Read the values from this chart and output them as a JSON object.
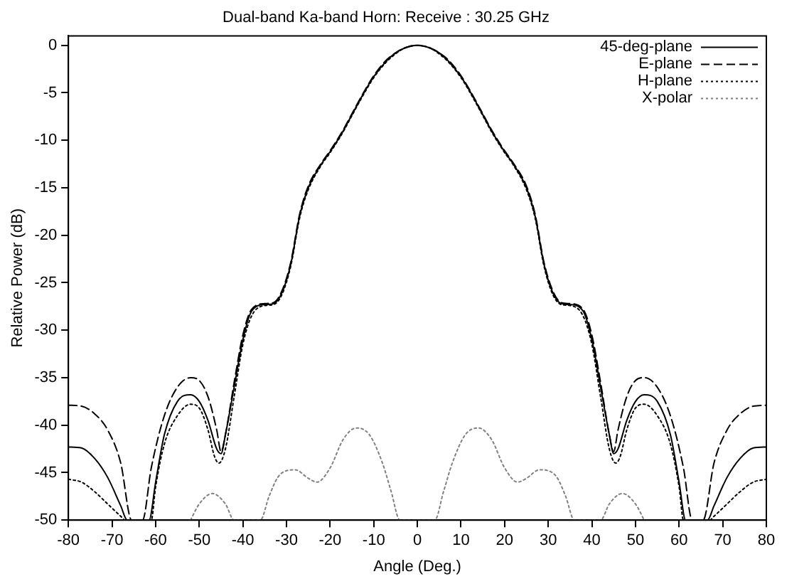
{
  "chart_data": {
    "type": "line",
    "title": "Dual-band Ka-band Horn: Receive : 30.25 GHz",
    "xlabel": "Angle (Deg.)",
    "ylabel": "Relative Power (dB)",
    "xlim": [
      -80,
      80
    ],
    "xticks": [
      -80,
      -70,
      -60,
      -50,
      -40,
      -30,
      -20,
      -10,
      0,
      10,
      20,
      30,
      40,
      50,
      60,
      70,
      80
    ],
    "ylim": [
      -50,
      1
    ],
    "yticks": [
      0,
      -5,
      -10,
      -15,
      -20,
      -25,
      -30,
      -35,
      -40,
      -45,
      -50
    ],
    "grid": false,
    "legend": "top right",
    "marker": "none",
    "series": [
      {
        "name": "45-deg-plane",
        "color": "#000000",
        "line_style": "solid",
        "x": [
          -80,
          -77,
          -74,
          -71,
          -68,
          -66.5,
          -61.5,
          -60,
          -58,
          -55,
          -52,
          -50,
          -48,
          -46,
          -45,
          -44,
          -42,
          -40,
          -38,
          -35,
          -33,
          -31,
          -29,
          -27,
          -25,
          -22,
          -20,
          -17,
          -15,
          -12,
          -10,
          -7,
          -5,
          -3,
          0,
          3,
          5,
          7,
          10,
          12,
          15,
          17,
          20,
          22,
          25,
          27,
          29,
          31,
          33,
          35,
          38,
          40,
          42,
          44,
          45,
          46,
          48,
          50,
          52,
          55,
          58,
          60,
          61.5,
          66.5,
          68,
          71,
          74,
          77,
          80
        ],
        "values": [
          -42.3,
          -42.4,
          -43.5,
          -45.5,
          -48.5,
          -50,
          -50,
          -46,
          -41,
          -37.5,
          -36.8,
          -37.5,
          -39.5,
          -42.5,
          -43,
          -41,
          -36,
          -31,
          -28,
          -27.3,
          -27.2,
          -26,
          -23,
          -18,
          -15,
          -12.5,
          -11.2,
          -9,
          -7.3,
          -4.8,
          -3.3,
          -1.6,
          -0.8,
          -0.3,
          0,
          -0.3,
          -0.8,
          -1.6,
          -3.3,
          -4.8,
          -7.3,
          -9,
          -11.2,
          -12.5,
          -15,
          -18,
          -23,
          -26,
          -27.2,
          -27.3,
          -28,
          -31,
          -36,
          -41,
          -43,
          -42.5,
          -39.5,
          -37.5,
          -36.8,
          -37.5,
          -41,
          -46,
          -50,
          -50,
          -48.5,
          -45.5,
          -43.5,
          -42.4,
          -42.3
        ]
      },
      {
        "name": "E-plane",
        "color": "#000000",
        "line_style": "dashed",
        "x": [
          -80,
          -77,
          -74,
          -71,
          -68,
          -65.5,
          -63,
          -61,
          -58,
          -55,
          -52,
          -50,
          -48,
          -46,
          -45,
          -44,
          -42,
          -40,
          -38,
          -35,
          -33,
          -31,
          -29,
          -27,
          -25,
          -22,
          -20,
          -17,
          -15,
          -12,
          -10,
          -7,
          -5,
          -3,
          0,
          3,
          5,
          7,
          10,
          12,
          15,
          17,
          20,
          22,
          25,
          27,
          29,
          31,
          33,
          35,
          38,
          40,
          42,
          44,
          45,
          46,
          48,
          50,
          52,
          55,
          58,
          61,
          63,
          65.5,
          68,
          71,
          74,
          77,
          80
        ],
        "values": [
          -37.9,
          -38,
          -38.8,
          -40.5,
          -44,
          -50,
          -50,
          -44.5,
          -39,
          -36,
          -35,
          -35.3,
          -37,
          -40.5,
          -42.8,
          -41,
          -35.5,
          -30.5,
          -27.8,
          -27.2,
          -27.1,
          -25.8,
          -22.8,
          -17.8,
          -14.8,
          -12.4,
          -11.1,
          -8.9,
          -7.2,
          -4.7,
          -3.2,
          -1.5,
          -0.8,
          -0.3,
          0,
          -0.3,
          -0.8,
          -1.5,
          -3.2,
          -4.7,
          -7.2,
          -8.9,
          -11.1,
          -12.4,
          -14.8,
          -17.8,
          -22.8,
          -25.8,
          -27.1,
          -27.2,
          -27.8,
          -30.5,
          -35.5,
          -41,
          -42.8,
          -40.5,
          -37,
          -35.3,
          -35,
          -36,
          -39,
          -44.5,
          -50,
          -50,
          -44,
          -40.5,
          -38.8,
          -38,
          -37.9
        ]
      },
      {
        "name": "H-plane",
        "color": "#000000",
        "line_style": "dotted",
        "x": [
          -80,
          -77,
          -74,
          -71,
          -68,
          -67,
          -61,
          -60,
          -58,
          -55,
          -52,
          -50,
          -48,
          -46.5,
          -45.5,
          -44,
          -42,
          -40,
          -38,
          -35,
          -33,
          -31,
          -29,
          -27,
          -25,
          -22,
          -20,
          -17,
          -15,
          -12,
          -10,
          -7,
          -5,
          -3,
          0,
          3,
          5,
          7,
          10,
          12,
          15,
          17,
          20,
          22,
          25,
          27,
          29,
          31,
          33,
          35,
          38,
          40,
          42,
          44,
          45.5,
          46.5,
          48,
          50,
          52,
          55,
          58,
          60,
          61,
          67,
          68,
          71,
          74,
          77,
          80
        ],
        "values": [
          -45.7,
          -46,
          -47,
          -48.3,
          -49.6,
          -50,
          -50,
          -46.5,
          -42,
          -39,
          -37.8,
          -38.2,
          -40.5,
          -43.3,
          -44,
          -42.5,
          -37,
          -31.5,
          -28.5,
          -27.4,
          -27.3,
          -26.2,
          -23.2,
          -18.2,
          -15.2,
          -12.6,
          -11.3,
          -9.1,
          -7.4,
          -4.9,
          -3.4,
          -1.7,
          -0.9,
          -0.3,
          0,
          -0.3,
          -0.9,
          -1.7,
          -3.4,
          -4.9,
          -7.4,
          -9.1,
          -11.3,
          -12.6,
          -15.2,
          -18.2,
          -23.2,
          -26.2,
          -27.3,
          -27.4,
          -28.5,
          -31.5,
          -37,
          -42.5,
          -44,
          -43.3,
          -40.5,
          -38.2,
          -37.8,
          -39,
          -42,
          -46.5,
          -50,
          -50,
          -49.6,
          -48.3,
          -47,
          -46,
          -45.7
        ]
      },
      {
        "name": "X-polar",
        "color": "#808080",
        "line_style": "dotted",
        "x": [
          -52,
          -50,
          -47,
          -44,
          -42,
          -36,
          -34,
          -32,
          -30,
          -28,
          -25,
          -23,
          -20,
          -17,
          -14,
          -11,
          -8,
          -6,
          -4,
          4,
          6,
          8,
          11,
          14,
          17,
          20,
          23,
          25,
          28,
          30,
          32,
          34,
          36,
          42,
          44,
          47,
          50,
          52
        ],
        "values": [
          -50,
          -48.3,
          -47.2,
          -48.3,
          -50,
          -50,
          -47.5,
          -45.5,
          -44.8,
          -44.7,
          -45.6,
          -46,
          -44.5,
          -41.5,
          -40.3,
          -41,
          -44,
          -47,
          -50,
          -50,
          -47,
          -44,
          -41,
          -40.3,
          -41.5,
          -44.5,
          -46,
          -45.6,
          -44.7,
          -44.8,
          -45.5,
          -47.5,
          -50,
          -50,
          -48.3,
          -47.2,
          -48.3,
          -50
        ]
      }
    ]
  }
}
